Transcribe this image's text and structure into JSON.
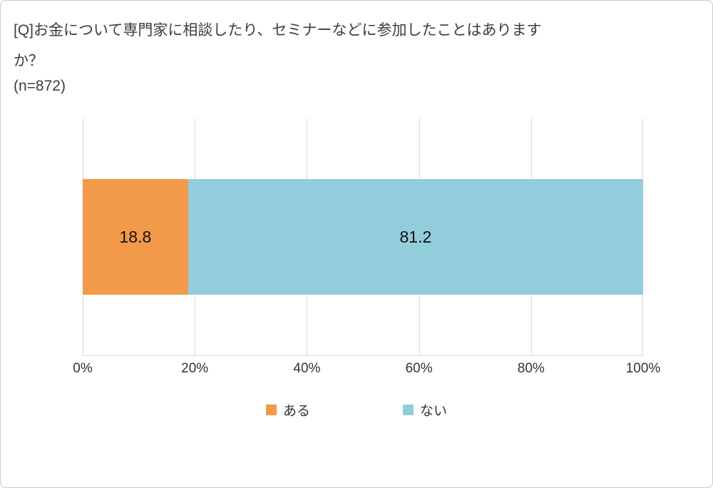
{
  "header": {
    "title_lines": [
      "[Q]お金について専門家に相談したり、セミナーなどに参加したことはあります",
      "か？"
    ],
    "sample_size": "(n=872)"
  },
  "chart_data": {
    "type": "bar",
    "orientation": "horizontal_stacked",
    "categories": [
      ""
    ],
    "series": [
      {
        "name": "ある",
        "values": [
          18.8
        ],
        "label": "18.8",
        "color": "#F2994A"
      },
      {
        "name": "ない",
        "values": [
          81.2
        ],
        "label": "81.2",
        "color": "#92CDDC"
      }
    ],
    "xlim": [
      0,
      100
    ],
    "xticks": [
      "0%",
      "20%",
      "40%",
      "60%",
      "80%",
      "100%"
    ],
    "grid": true,
    "legend_position": "bottom",
    "colors": {
      "grid": "#D9D9D9",
      "title_text": "#3D3D3D",
      "label_text": "#111111"
    }
  }
}
